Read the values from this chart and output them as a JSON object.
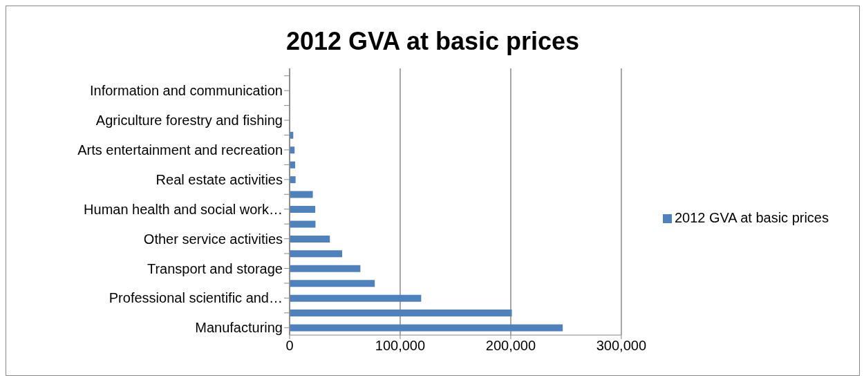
{
  "chart_data": {
    "type": "bar",
    "title": "2012 GVA at basic prices",
    "orientation": "horizontal",
    "categories": [
      null,
      "Information and communication",
      null,
      "Agriculture forestry and fishing",
      null,
      "Arts entertainment and recreation",
      null,
      "Real estate activities",
      null,
      "Human health and social work…",
      null,
      "Other service activities",
      null,
      "Transport and storage",
      null,
      "Professional scientific and…",
      null,
      "Manufacturing"
    ],
    "series": [
      {
        "name": "2012 GVA at basic prices",
        "color": "#4f81bd",
        "values": [
          0,
          0,
          0,
          0,
          3300,
          4500,
          5000,
          5400,
          21000,
          23200,
          23400,
          36400,
          47500,
          64000,
          77000,
          119000,
          201000,
          247000
        ]
      }
    ],
    "xlim": [
      0,
      300000
    ],
    "xticks": [
      {
        "value": 0,
        "label": "0"
      },
      {
        "value": 100000,
        "label": "100,000"
      },
      {
        "value": 200000,
        "label": "200,000"
      },
      {
        "value": 300000,
        "label": "300,000"
      }
    ],
    "grid": "x",
    "legend": "right"
  }
}
